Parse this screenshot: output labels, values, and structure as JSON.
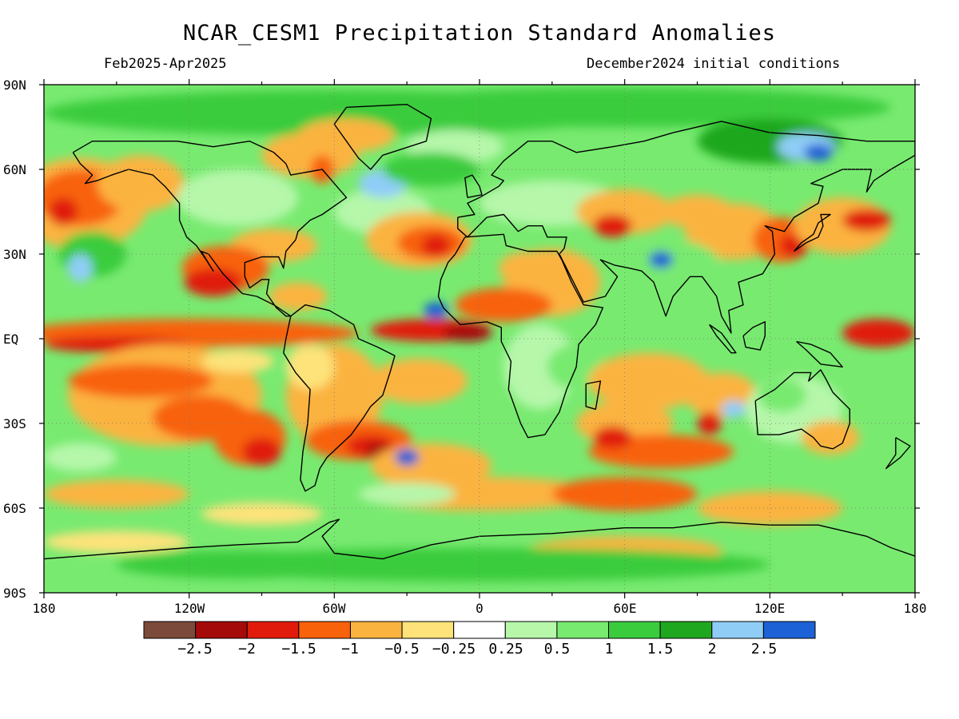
{
  "title": "NCAR_CESM1 Precipitation Standard Anomalies",
  "period": "Feb2025-Apr2025",
  "init": "December2024 initial conditions",
  "lat_labels": [
    "90N",
    "60N",
    "30N",
    "EQ",
    "30S",
    "60S",
    "90S"
  ],
  "lon_labels": [
    "180",
    "120W",
    "60W",
    "0",
    "60E",
    "120E",
    "180"
  ],
  "colorbar": {
    "colors": [
      "#7b4a3a",
      "#a50a0a",
      "#e01b0b",
      "#f8620a",
      "#fbb33f",
      "#fde37a",
      "#ffffff",
      "#b6f7aa",
      "#78ea70",
      "#3acc3c",
      "#1fa71f",
      "#8fcdf7",
      "#1c62d6"
    ],
    "labels": [
      "−2.5",
      "−2",
      "−1.5",
      "−1",
      "−0.5",
      "−0.25",
      "0.25",
      "0.5",
      "1",
      "1.5",
      "2",
      "2.5"
    ]
  },
  "map_colors": {
    "green_light": "#b6f7aa",
    "green": "#78ea70",
    "green_dark": "#3acc3c",
    "green_darker": "#1fa71f",
    "blue_light": "#8fcdf7",
    "blue": "#1c62d6",
    "yellow": "#fde37a",
    "orange_light": "#fbb33f",
    "orange": "#f8620a",
    "red": "#e01b0b",
    "red_dark": "#a50a0a",
    "brown": "#7b4a3a"
  }
}
